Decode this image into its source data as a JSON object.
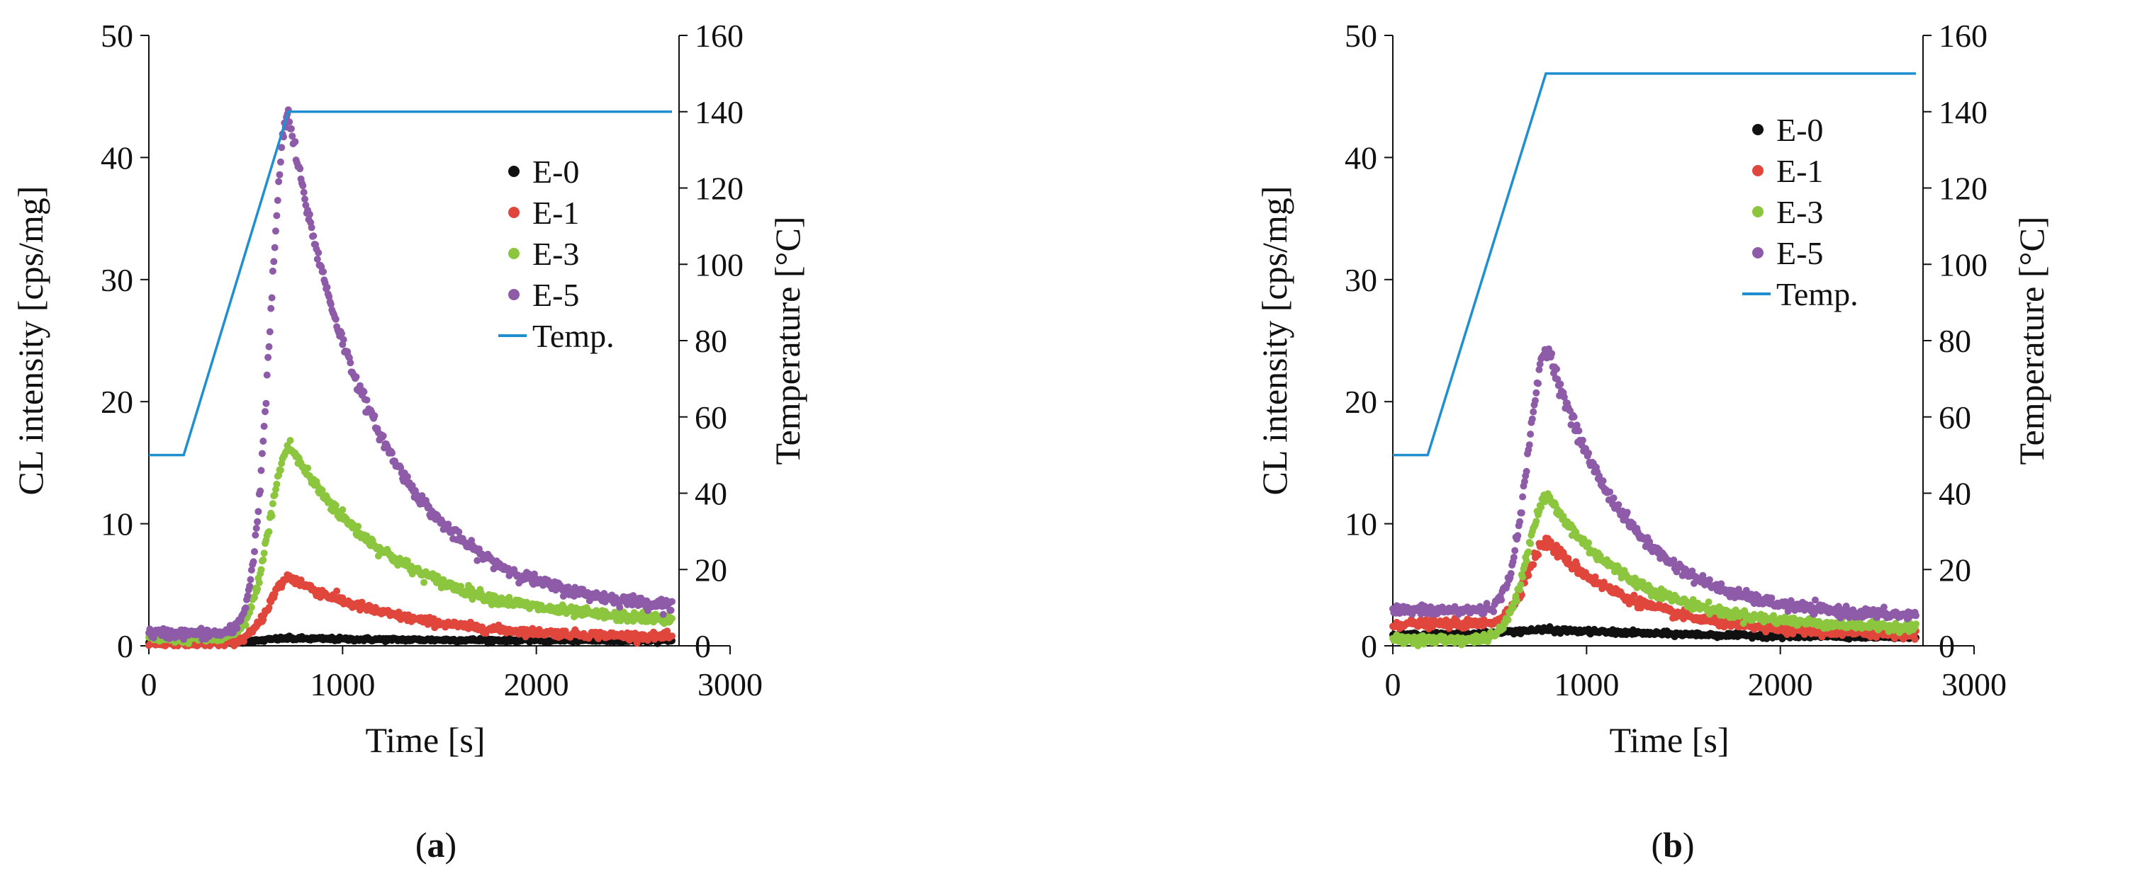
{
  "chart_data": [
    {
      "type": "scatter",
      "panel_label": "a",
      "xlabel": "Time [s]",
      "ylabel": "CL intensity [cps/mg]",
      "y2label": "Temperature [°C]",
      "xlim": [
        0,
        3000
      ],
      "ylim": [
        0,
        50
      ],
      "y2lim": [
        0,
        160
      ],
      "xticks": [
        0,
        1000,
        2000,
        3000
      ],
      "yticks": [
        0,
        10,
        20,
        30,
        40,
        50
      ],
      "y2ticks": [
        0,
        20,
        40,
        60,
        80,
        100,
        120,
        140,
        160
      ],
      "grid": false,
      "legend_position": "top-right",
      "series": [
        {
          "name": "E-0",
          "color": "#111111",
          "kind": "peak",
          "x_end": 2700,
          "base_start": 0.3,
          "peak_x": 720,
          "peak_y": 0.6,
          "tail_end": 0.4,
          "decay": 900,
          "rise": 160,
          "sigma": 0.08
        },
        {
          "name": "E-1",
          "color": "#e0463b",
          "kind": "peak",
          "x_end": 2700,
          "base_start": 0.2,
          "peak_x": 730,
          "peak_y": 5.6,
          "tail_end": 0.6,
          "decay": 560,
          "rise": 150,
          "sigma": 0.22
        },
        {
          "name": "E-3",
          "color": "#8cc63f",
          "kind": "peak",
          "x_end": 2700,
          "base_start": 0.6,
          "peak_x": 730,
          "peak_y": 16.3,
          "tail_end": 1.8,
          "decay": 540,
          "rise": 150,
          "sigma": 0.3
        },
        {
          "name": "E-5",
          "color": "#8e5ba8",
          "kind": "peak",
          "x_end": 2700,
          "base_start": 1.0,
          "peak_x": 720,
          "peak_y": 43.5,
          "tail_end": 2.8,
          "decay": 460,
          "rise": 130,
          "sigma": 0.35
        },
        {
          "name": "Temp.",
          "color": "#1f8fd0",
          "kind": "line",
          "axis": "y2",
          "x": [
            0,
            180,
            720,
            2700
          ],
          "y": [
            50,
            50,
            140,
            140
          ]
        }
      ]
    },
    {
      "type": "scatter",
      "panel_label": "b",
      "xlabel": "Time [s]",
      "ylabel": "CL intensity [cps/mg]",
      "y2label": "Temperature [°C]",
      "xlim": [
        0,
        3000
      ],
      "ylim": [
        0,
        50
      ],
      "y2lim": [
        0,
        160
      ],
      "xticks": [
        0,
        1000,
        2000,
        3000
      ],
      "yticks": [
        0,
        10,
        20,
        30,
        40,
        50
      ],
      "y2ticks": [
        0,
        20,
        40,
        60,
        80,
        100,
        120,
        140,
        160
      ],
      "grid": false,
      "legend_position": "top-right",
      "series": [
        {
          "name": "E-0",
          "color": "#111111",
          "kind": "peak",
          "x_end": 2700,
          "base_start": 0.9,
          "peak_x": 800,
          "peak_y": 1.3,
          "tail_end": 0.5,
          "decay": 1200,
          "rise": 300,
          "sigma": 0.1
        },
        {
          "name": "E-1",
          "color": "#e0463b",
          "kind": "peak",
          "x_end": 2700,
          "base_start": 1.8,
          "peak_x": 800,
          "peak_y": 8.5,
          "tail_end": 0.8,
          "decay": 460,
          "rise": 150,
          "sigma": 0.25
        },
        {
          "name": "E-3",
          "color": "#8cc63f",
          "kind": "peak",
          "x_end": 2700,
          "base_start": 0.5,
          "peak_x": 800,
          "peak_y": 12.2,
          "tail_end": 1.4,
          "decay": 440,
          "rise": 150,
          "sigma": 0.28
        },
        {
          "name": "E-5",
          "color": "#8e5ba8",
          "kind": "peak",
          "x_end": 2700,
          "base_start": 2.9,
          "peak_x": 800,
          "peak_y": 24.5,
          "tail_end": 2.3,
          "decay": 400,
          "rise": 140,
          "sigma": 0.32
        },
        {
          "name": "Temp.",
          "color": "#1f8fd0",
          "kind": "line",
          "axis": "y2",
          "x": [
            0,
            180,
            790,
            2700
          ],
          "y": [
            50,
            50,
            150,
            150
          ]
        }
      ]
    }
  ],
  "captions": [
    {
      "open": "(",
      "letter": "a",
      "close": ")"
    },
    {
      "open": "(",
      "letter": "b",
      "close": ")"
    }
  ]
}
